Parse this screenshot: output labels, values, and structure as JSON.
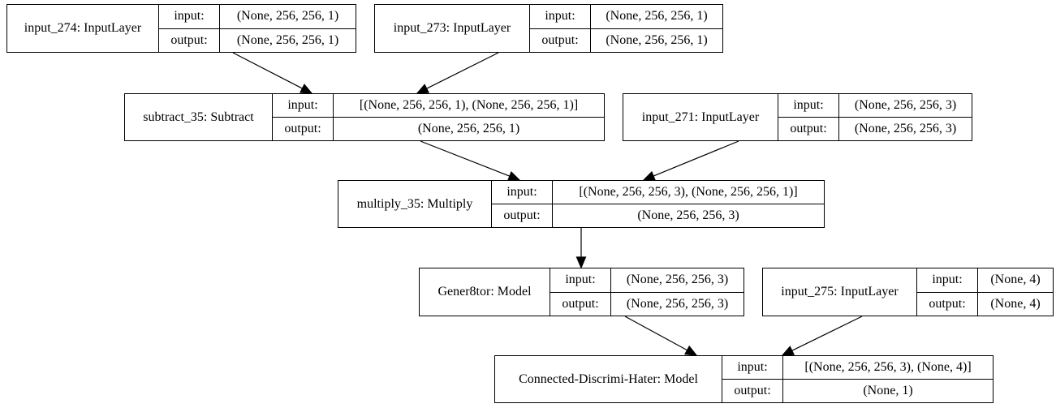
{
  "port_labels": {
    "input": "input:",
    "output": "output:"
  },
  "nodes": {
    "input_274": {
      "name": "input_274: InputLayer",
      "input": "(None, 256, 256, 1)",
      "output": "(None, 256, 256, 1)"
    },
    "input_273": {
      "name": "input_273: InputLayer",
      "input": "(None, 256, 256, 1)",
      "output": "(None, 256, 256, 1)"
    },
    "subtract_35": {
      "name": "subtract_35: Subtract",
      "input": "[(None, 256, 256, 1), (None, 256, 256, 1)]",
      "output": "(None, 256, 256, 1)"
    },
    "input_271": {
      "name": "input_271: InputLayer",
      "input": "(None, 256, 256, 3)",
      "output": "(None, 256, 256, 3)"
    },
    "multiply_35": {
      "name": "multiply_35: Multiply",
      "input": "[(None, 256, 256, 3), (None, 256, 256, 1)]",
      "output": "(None, 256, 256, 3)"
    },
    "gener8tor": {
      "name": "Gener8tor: Model",
      "input": "(None, 256, 256, 3)",
      "output": "(None, 256, 256, 3)"
    },
    "input_275": {
      "name": "input_275: InputLayer",
      "input": "(None, 4)",
      "output": "(None, 4)"
    },
    "connected": {
      "name": "Connected-Discrimi-Hater: Model",
      "input": "[(None, 256, 256, 3), (None, 4)]",
      "output": "(None, 1)"
    }
  },
  "edges": [
    {
      "from": "input_274",
      "to": "subtract_35"
    },
    {
      "from": "input_273",
      "to": "subtract_35"
    },
    {
      "from": "subtract_35",
      "to": "multiply_35"
    },
    {
      "from": "input_271",
      "to": "multiply_35"
    },
    {
      "from": "multiply_35",
      "to": "gener8tor"
    },
    {
      "from": "gener8tor",
      "to": "connected"
    },
    {
      "from": "input_275",
      "to": "connected"
    }
  ]
}
